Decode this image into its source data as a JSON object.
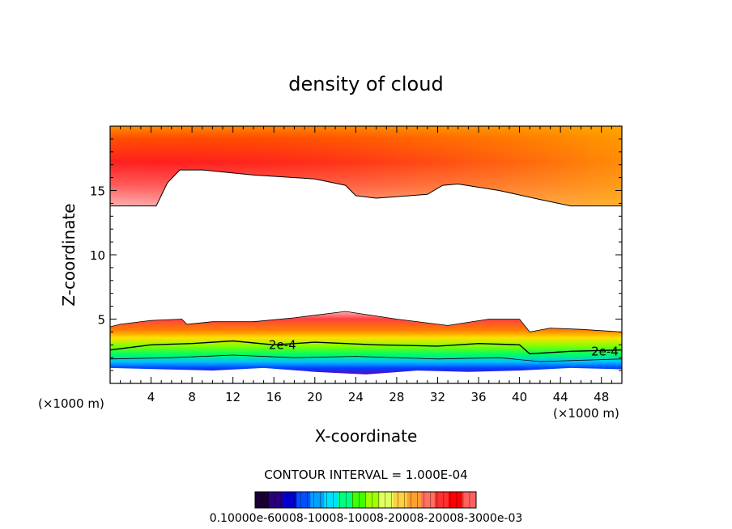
{
  "chart_data": {
    "type": "heatmap",
    "title": "density of cloud",
    "xlabel": "X-coordinate",
    "ylabel": "Z-coordinate",
    "x_unit_label": "(×1000 m)",
    "x_unit_label_right": "(×1000 m)",
    "xlim": [
      0,
      50
    ],
    "ylim": [
      0,
      20
    ],
    "x_ticks": [
      4,
      8,
      12,
      16,
      20,
      24,
      28,
      32,
      36,
      40,
      44,
      48
    ],
    "y_ticks": [
      5,
      10,
      15
    ],
    "contour_interval_text": "CONTOUR INTERVAL = 1.000E-04",
    "contour_labels": [
      {
        "text": "2e-4",
        "x": 15.5,
        "z": 3.0
      },
      {
        "text": "2e-4",
        "x": 47.0,
        "z": 2.5
      }
    ],
    "upper_layer": {
      "top_z": 20,
      "bottom_boundary": [
        {
          "x": 0,
          "z": 13.8
        },
        {
          "x": 4.5,
          "z": 13.8
        },
        {
          "x": 5.6,
          "z": 15.6
        },
        {
          "x": 6.8,
          "z": 16.6
        },
        {
          "x": 9,
          "z": 16.6
        },
        {
          "x": 14,
          "z": 16.2
        },
        {
          "x": 20,
          "z": 15.9
        },
        {
          "x": 23,
          "z": 15.4
        },
        {
          "x": 24,
          "z": 14.6
        },
        {
          "x": 26,
          "z": 14.4
        },
        {
          "x": 31,
          "z": 14.7
        },
        {
          "x": 32.5,
          "z": 15.4
        },
        {
          "x": 34,
          "z": 15.5
        },
        {
          "x": 38,
          "z": 15.0
        },
        {
          "x": 42,
          "z": 14.3
        },
        {
          "x": 45,
          "z": 13.8
        },
        {
          "x": 50,
          "z": 13.8
        }
      ]
    },
    "lower_layer": {
      "top_boundary": [
        {
          "x": 0,
          "z": 4.4
        },
        {
          "x": 1,
          "z": 4.6
        },
        {
          "x": 4,
          "z": 4.9
        },
        {
          "x": 7,
          "z": 5.0
        },
        {
          "x": 7.5,
          "z": 4.6
        },
        {
          "x": 10,
          "z": 4.8
        },
        {
          "x": 14,
          "z": 4.8
        },
        {
          "x": 18,
          "z": 5.1
        },
        {
          "x": 23,
          "z": 5.6
        },
        {
          "x": 28,
          "z": 5.0
        },
        {
          "x": 33,
          "z": 4.5
        },
        {
          "x": 37,
          "z": 5.0
        },
        {
          "x": 40,
          "z": 5.0
        },
        {
          "x": 41,
          "z": 4.0
        },
        {
          "x": 43,
          "z": 4.3
        },
        {
          "x": 46,
          "z": 4.2
        },
        {
          "x": 50,
          "z": 4.0
        }
      ],
      "contour_2e4": [
        {
          "x": 0,
          "z": 2.6
        },
        {
          "x": 4,
          "z": 3.0
        },
        {
          "x": 8,
          "z": 3.1
        },
        {
          "x": 12,
          "z": 3.3
        },
        {
          "x": 16,
          "z": 3.0
        },
        {
          "x": 20,
          "z": 3.2
        },
        {
          "x": 26,
          "z": 3.0
        },
        {
          "x": 32,
          "z": 2.9
        },
        {
          "x": 36,
          "z": 3.1
        },
        {
          "x": 40,
          "z": 3.0
        },
        {
          "x": 41,
          "z": 2.3
        },
        {
          "x": 45,
          "z": 2.5
        },
        {
          "x": 50,
          "z": 2.6
        }
      ],
      "contour_1e4": [
        {
          "x": 0,
          "z": 1.9
        },
        {
          "x": 6,
          "z": 2.0
        },
        {
          "x": 12,
          "z": 2.2
        },
        {
          "x": 18,
          "z": 2.0
        },
        {
          "x": 24,
          "z": 2.1
        },
        {
          "x": 32,
          "z": 1.9
        },
        {
          "x": 38,
          "z": 2.0
        },
        {
          "x": 42,
          "z": 1.7
        },
        {
          "x": 50,
          "z": 1.9
        }
      ],
      "base_boundary": [
        {
          "x": 0,
          "z": 1.2
        },
        {
          "x": 5,
          "z": 1.1
        },
        {
          "x": 10,
          "z": 1.0
        },
        {
          "x": 15,
          "z": 1.2
        },
        {
          "x": 20,
          "z": 0.9
        },
        {
          "x": 25,
          "z": 0.7
        },
        {
          "x": 30,
          "z": 1.0
        },
        {
          "x": 35,
          "z": 0.9
        },
        {
          "x": 40,
          "z": 1.0
        },
        {
          "x": 45,
          "z": 1.2
        },
        {
          "x": 50,
          "z": 1.1
        }
      ]
    },
    "colorbar": {
      "min": 0.0001,
      "max": 0.0003,
      "tick_text": "0.10000e-60008-10008-10008-20008-20008-3000e-03",
      "colors": [
        "#1a0033",
        "#2a0080",
        "#0000d0",
        "#0050ff",
        "#00a0ff",
        "#00e0ff",
        "#00ff80",
        "#40ff00",
        "#a0ff00",
        "#e0ff60",
        "#ffd040",
        "#ffa030",
        "#ff7060",
        "#ff3030",
        "#ff0000",
        "#ff6060"
      ]
    }
  }
}
